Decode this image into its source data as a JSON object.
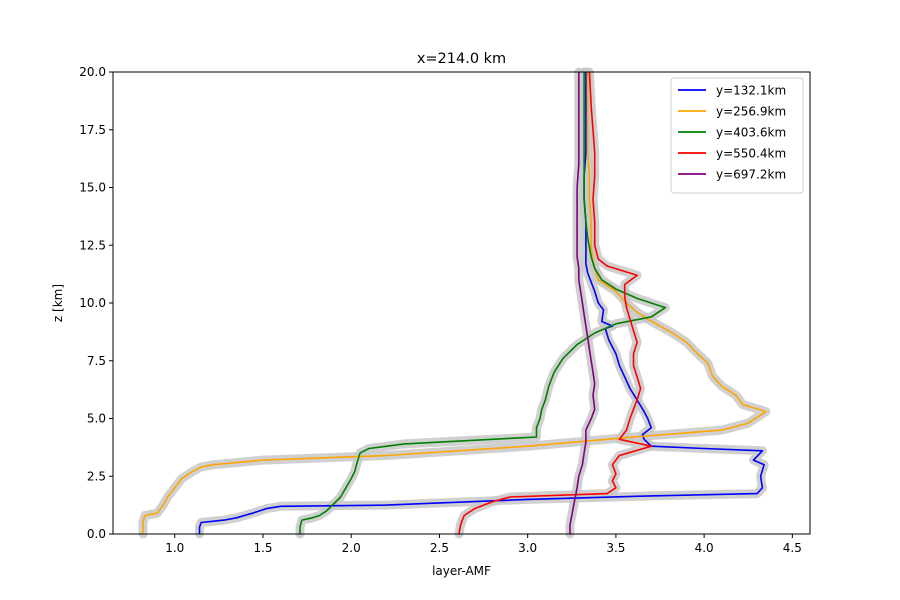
{
  "chart_data": {
    "type": "line",
    "title": "x=214.0 km",
    "xlabel": "layer-AMF",
    "ylabel": "z [km]",
    "xlim": [
      0.65,
      4.6
    ],
    "ylim": [
      0,
      20
    ],
    "xticks": [
      1.0,
      1.5,
      2.0,
      2.5,
      3.0,
      3.5,
      4.0,
      4.5
    ],
    "xtick_labels": [
      "1.0",
      "1.5",
      "2.0",
      "2.5",
      "3.0",
      "3.5",
      "4.0",
      "4.5"
    ],
    "yticks": [
      0,
      2.5,
      5,
      7.5,
      10,
      12.5,
      15,
      17.5,
      20
    ],
    "ytick_labels": [
      "0.0",
      "2.5",
      "5.0",
      "7.5",
      "10.0",
      "12.5",
      "15.0",
      "17.5",
      "20.0"
    ],
    "grid": false,
    "legend_position": "top-right",
    "uncertainty_band_color": "#c8c8c8",
    "series": [
      {
        "name": "y=132.1km",
        "color": "#0000ff",
        "points": [
          [
            1.14,
            0
          ],
          [
            1.14,
            0.3
          ],
          [
            1.15,
            0.5
          ],
          [
            1.28,
            0.6
          ],
          [
            1.35,
            0.7
          ],
          [
            1.44,
            0.9
          ],
          [
            1.52,
            1.1
          ],
          [
            1.6,
            1.2
          ],
          [
            2.2,
            1.25
          ],
          [
            3.0,
            1.5
          ],
          [
            3.7,
            1.65
          ],
          [
            4.3,
            1.75
          ],
          [
            4.33,
            2.0
          ],
          [
            4.32,
            2.5
          ],
          [
            4.34,
            3.0
          ],
          [
            4.28,
            3.2
          ],
          [
            4.33,
            3.6
          ],
          [
            4.0,
            3.7
          ],
          [
            3.7,
            3.8
          ],
          [
            3.66,
            4.1
          ],
          [
            3.65,
            4.3
          ],
          [
            3.7,
            4.6
          ],
          [
            3.68,
            5.0
          ],
          [
            3.66,
            5.3
          ],
          [
            3.62,
            5.8
          ],
          [
            3.58,
            6.3
          ],
          [
            3.55,
            6.8
          ],
          [
            3.52,
            7.3
          ],
          [
            3.5,
            7.8
          ],
          [
            3.46,
            8.4
          ],
          [
            3.44,
            8.9
          ],
          [
            3.48,
            9.0
          ],
          [
            3.42,
            9.2
          ],
          [
            3.43,
            9.7
          ],
          [
            3.4,
            10.0
          ],
          [
            3.38,
            10.5
          ],
          [
            3.36,
            10.9
          ],
          [
            3.34,
            11.3
          ],
          [
            3.33,
            11.7
          ],
          [
            3.33,
            12.5
          ],
          [
            3.33,
            13.5
          ],
          [
            3.32,
            14.5
          ],
          [
            3.32,
            15.5
          ],
          [
            3.33,
            16.5
          ],
          [
            3.33,
            17.5
          ],
          [
            3.33,
            18.5
          ],
          [
            3.33,
            20
          ]
        ]
      },
      {
        "name": "y=256.9km",
        "color": "#ffa500",
        "points": [
          [
            0.82,
            0
          ],
          [
            0.82,
            0.5
          ],
          [
            0.83,
            0.8
          ],
          [
            0.9,
            0.9
          ],
          [
            0.93,
            1.2
          ],
          [
            0.96,
            1.6
          ],
          [
            1.0,
            2.0
          ],
          [
            1.04,
            2.4
          ],
          [
            1.1,
            2.7
          ],
          [
            1.15,
            2.9
          ],
          [
            1.22,
            3.0
          ],
          [
            1.5,
            3.2
          ],
          [
            2.2,
            3.4
          ],
          [
            3.0,
            3.8
          ],
          [
            3.6,
            4.2
          ],
          [
            4.1,
            4.5
          ],
          [
            4.25,
            4.8
          ],
          [
            4.35,
            5.3
          ],
          [
            4.22,
            5.6
          ],
          [
            4.18,
            6.0
          ],
          [
            4.1,
            6.4
          ],
          [
            4.05,
            6.8
          ],
          [
            4.02,
            7.4
          ],
          [
            3.95,
            7.9
          ],
          [
            3.9,
            8.3
          ],
          [
            3.82,
            8.7
          ],
          [
            3.75,
            9.0
          ],
          [
            3.68,
            9.3
          ],
          [
            3.62,
            9.6
          ],
          [
            3.56,
            10.0
          ],
          [
            3.5,
            10.5
          ],
          [
            3.4,
            11.0
          ],
          [
            3.37,
            11.8
          ],
          [
            3.36,
            12.5
          ],
          [
            3.36,
            13.5
          ],
          [
            3.35,
            14.5
          ],
          [
            3.35,
            15.5
          ],
          [
            3.34,
            16.5
          ],
          [
            3.34,
            17.5
          ],
          [
            3.34,
            18.5
          ],
          [
            3.34,
            20
          ]
        ]
      },
      {
        "name": "y=403.6km",
        "color": "#008000",
        "points": [
          [
            1.71,
            0
          ],
          [
            1.71,
            0.3
          ],
          [
            1.72,
            0.6
          ],
          [
            1.78,
            0.7
          ],
          [
            1.82,
            0.8
          ],
          [
            1.86,
            1.0
          ],
          [
            1.9,
            1.3
          ],
          [
            1.94,
            1.6
          ],
          [
            1.97,
            2.0
          ],
          [
            2.0,
            2.4
          ],
          [
            2.02,
            2.7
          ],
          [
            2.03,
            3.0
          ],
          [
            2.05,
            3.5
          ],
          [
            2.1,
            3.7
          ],
          [
            2.3,
            3.9
          ],
          [
            3.05,
            4.2
          ],
          [
            3.05,
            4.6
          ],
          [
            3.07,
            5.0
          ],
          [
            3.08,
            5.4
          ],
          [
            3.1,
            5.8
          ],
          [
            3.12,
            6.4
          ],
          [
            3.15,
            7.0
          ],
          [
            3.2,
            7.6
          ],
          [
            3.28,
            8.2
          ],
          [
            3.38,
            8.7
          ],
          [
            3.5,
            9.1
          ],
          [
            3.7,
            9.4
          ],
          [
            3.78,
            9.8
          ],
          [
            3.62,
            10.2
          ],
          [
            3.5,
            10.6
          ],
          [
            3.42,
            11.0
          ],
          [
            3.38,
            11.5
          ],
          [
            3.36,
            12.0
          ],
          [
            3.34,
            12.8
          ],
          [
            3.33,
            13.5
          ],
          [
            3.32,
            14.5
          ],
          [
            3.32,
            15.5
          ],
          [
            3.32,
            16.5
          ],
          [
            3.32,
            17.5
          ],
          [
            3.32,
            18.5
          ],
          [
            3.32,
            20
          ]
        ]
      },
      {
        "name": "y=550.4km",
        "color": "#ff0000",
        "points": [
          [
            2.61,
            0
          ],
          [
            2.62,
            0.4
          ],
          [
            2.64,
            0.8
          ],
          [
            2.7,
            1.1
          ],
          [
            2.8,
            1.4
          ],
          [
            2.9,
            1.6
          ],
          [
            3.45,
            1.75
          ],
          [
            3.5,
            2.0
          ],
          [
            3.48,
            2.3
          ],
          [
            3.5,
            2.6
          ],
          [
            3.48,
            3.0
          ],
          [
            3.52,
            3.4
          ],
          [
            3.7,
            3.8
          ],
          [
            3.52,
            4.1
          ],
          [
            3.56,
            4.5
          ],
          [
            3.58,
            5.0
          ],
          [
            3.6,
            5.4
          ],
          [
            3.62,
            5.8
          ],
          [
            3.64,
            6.3
          ],
          [
            3.62,
            6.8
          ],
          [
            3.6,
            7.3
          ],
          [
            3.6,
            7.8
          ],
          [
            3.62,
            8.3
          ],
          [
            3.6,
            8.8
          ],
          [
            3.58,
            9.3
          ],
          [
            3.56,
            9.8
          ],
          [
            3.55,
            10.3
          ],
          [
            3.55,
            10.8
          ],
          [
            3.62,
            11.2
          ],
          [
            3.45,
            11.6
          ],
          [
            3.4,
            11.9
          ],
          [
            3.38,
            12.5
          ],
          [
            3.38,
            13.5
          ],
          [
            3.37,
            14.5
          ],
          [
            3.38,
            15.5
          ],
          [
            3.38,
            16.5
          ],
          [
            3.37,
            17.5
          ],
          [
            3.36,
            18.5
          ],
          [
            3.35,
            20
          ]
        ]
      },
      {
        "name": "y=697.2km",
        "color": "#800080",
        "points": [
          [
            3.24,
            0
          ],
          [
            3.24,
            0.4
          ],
          [
            3.25,
            0.8
          ],
          [
            3.26,
            1.2
          ],
          [
            3.27,
            1.6
          ],
          [
            3.28,
            2.0
          ],
          [
            3.29,
            2.5
          ],
          [
            3.31,
            3.0
          ],
          [
            3.32,
            3.5
          ],
          [
            3.33,
            4.0
          ],
          [
            3.33,
            4.5
          ],
          [
            3.36,
            5.0
          ],
          [
            3.38,
            5.4
          ],
          [
            3.37,
            6.0
          ],
          [
            3.38,
            6.5
          ],
          [
            3.37,
            7.0
          ],
          [
            3.36,
            7.5
          ],
          [
            3.35,
            8.0
          ],
          [
            3.34,
            8.5
          ],
          [
            3.33,
            9.0
          ],
          [
            3.32,
            9.5
          ],
          [
            3.31,
            10.0
          ],
          [
            3.3,
            10.5
          ],
          [
            3.29,
            11.0
          ],
          [
            3.29,
            11.5
          ],
          [
            3.28,
            12.0
          ],
          [
            3.28,
            13.0
          ],
          [
            3.28,
            14.0
          ],
          [
            3.28,
            15.0
          ],
          [
            3.29,
            16.0
          ],
          [
            3.29,
            17.0
          ],
          [
            3.29,
            18.0
          ],
          [
            3.29,
            19.0
          ],
          [
            3.29,
            20
          ]
        ]
      }
    ]
  }
}
